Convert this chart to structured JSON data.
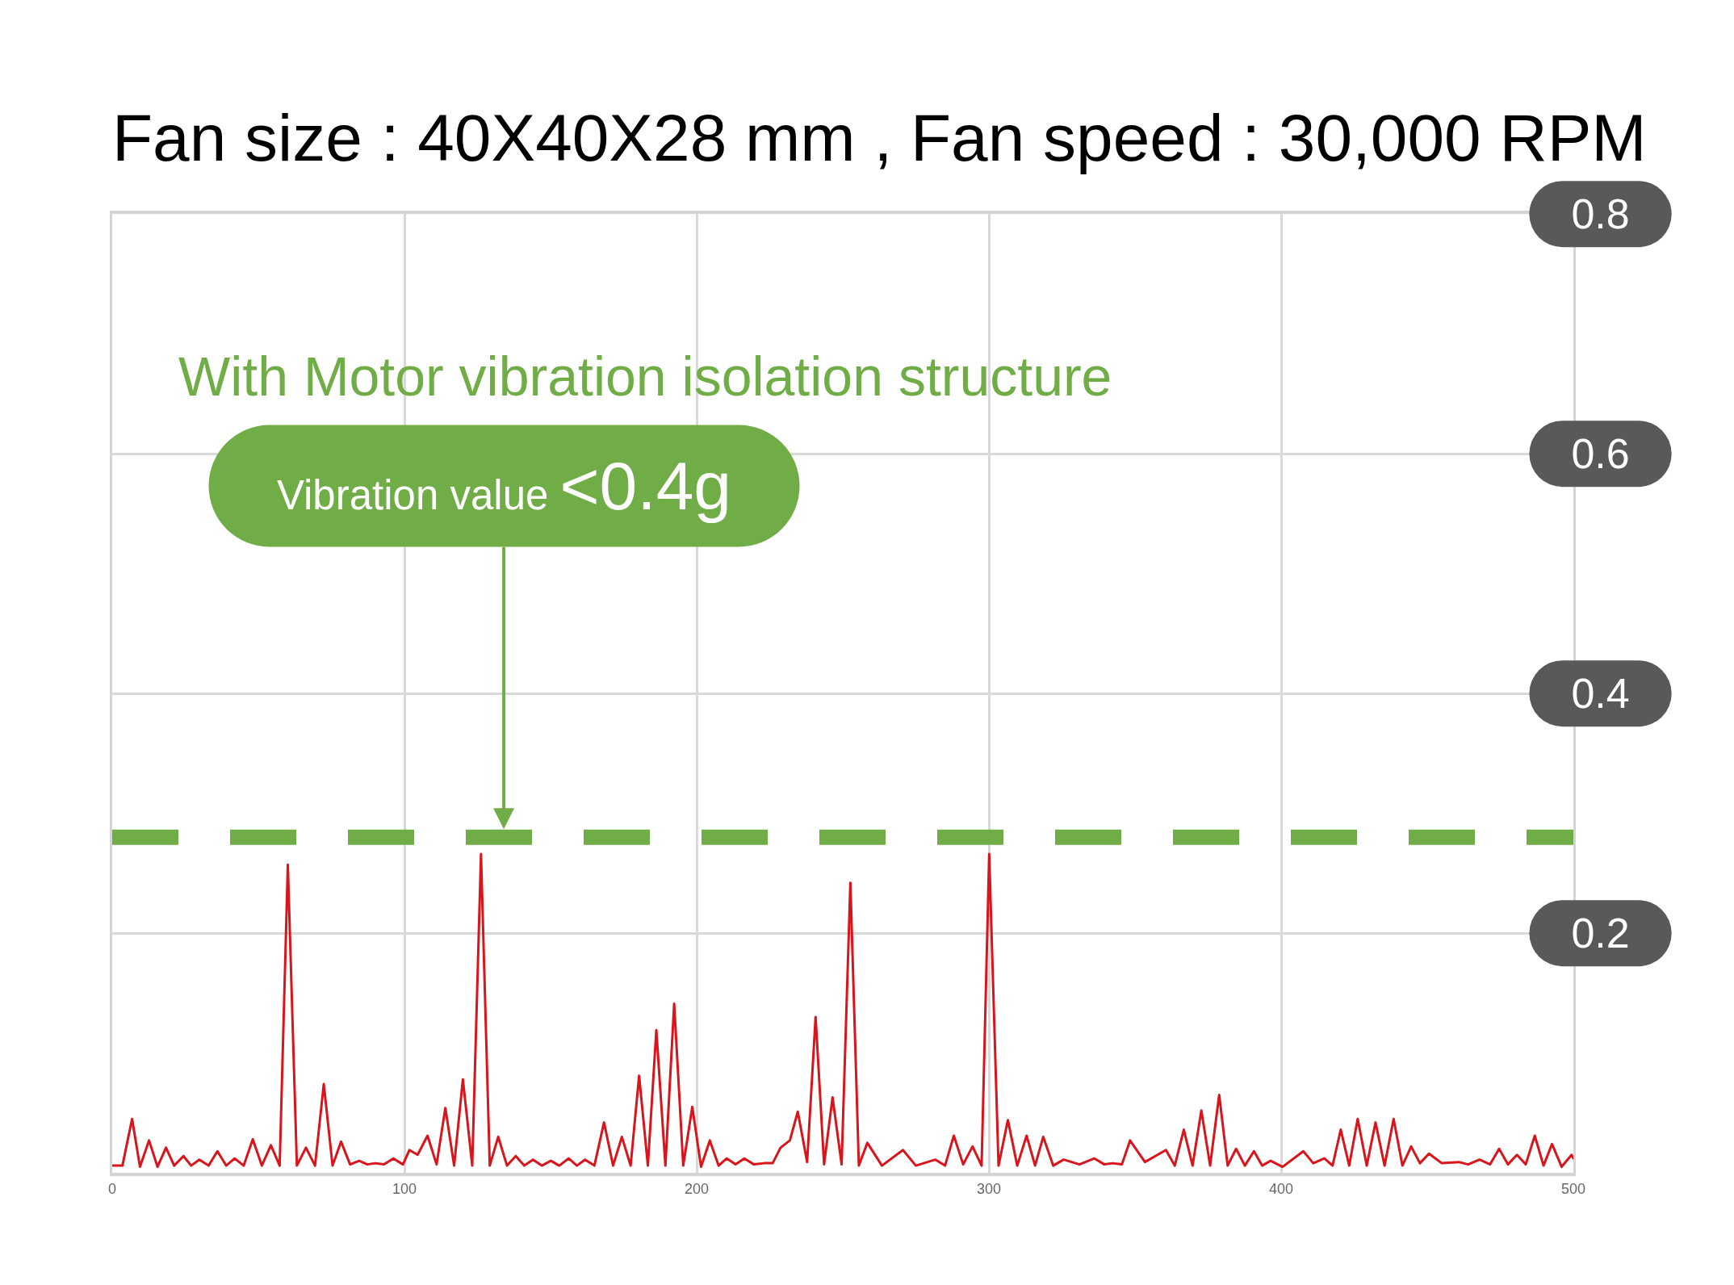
{
  "chart_data": {
    "type": "line",
    "title": "Fan size : 40X40X28 mm , Fan speed : 30,000 RPM",
    "annotations": [
      "With Motor vibration isolation structure",
      {
        "text": "Vibration value <0.4g",
        "x": 134,
        "y": 0.28
      }
    ],
    "x": [
      0,
      3.5,
      6.8,
      9.5,
      12.6,
      15.5,
      18.4,
      21.2,
      24.4,
      27,
      29.8,
      33,
      36,
      39,
      41.9,
      45,
      48.1,
      51.2,
      54.3,
      57.3,
      60.1,
      63.2,
      66.3,
      69.4,
      72.4,
      75.4,
      78.3,
      81.4,
      84.5,
      87.3,
      90,
      93,
      96.2,
      99.5,
      101.7,
      104.5,
      107.9,
      111,
      114,
      117,
      120,
      123.2,
      126.2,
      129.2,
      132.1,
      135.1,
      138.1,
      141,
      144,
      147,
      150.1,
      153,
      156.2,
      159,
      161.8,
      165,
      168.3,
      171.4,
      174.4,
      177.4,
      180.3,
      183.3,
      186.2,
      189.3,
      192.3,
      195.4,
      198.5,
      201.5,
      204.5,
      207.5,
      210.3,
      213.3,
      216.3,
      219.6,
      223,
      226,
      228.7,
      231.9,
      234.6,
      237.8,
      240.7,
      243.6,
      246.5,
      249.6,
      252.6,
      255.5,
      258.4,
      263.4,
      270.6,
      275,
      281.7,
      285,
      288,
      291.2,
      294.4,
      297.5,
      300.1,
      303.3,
      306.5,
      309.7,
      312.9,
      315.8,
      318.6,
      322,
      325.6,
      331,
      336.1,
      339.5,
      342.4,
      345.5,
      348.3,
      353.4,
      360.6,
      363.6,
      366.7,
      369.7,
      372.7,
      375.7,
      378.8,
      381.7,
      384.6,
      387.6,
      390.7,
      393.5,
      396.4,
      400.5,
      407.6,
      411,
      414.8,
      417.6,
      420.4,
      423.3,
      426.2,
      429.3,
      432.3,
      435.4,
      438.5,
      441.5,
      444.5,
      447.5,
      450.6,
      455,
      460.8,
      464,
      467.9,
      471.5,
      474.6,
      477.6,
      480.7,
      483.7,
      486.8,
      489.8,
      492.7,
      496,
      499.4,
      500
    ],
    "values": [
      0.006,
      0.006,
      0.045,
      0.005,
      0.027,
      0.005,
      0.021,
      0.006,
      0.014,
      0.006,
      0.011,
      0.006,
      0.018,
      0.006,
      0.012,
      0.006,
      0.028,
      0.006,
      0.023,
      0.006,
      0.257,
      0.006,
      0.021,
      0.006,
      0.074,
      0.006,
      0.026,
      0.007,
      0.01,
      0.007,
      0.008,
      0.007,
      0.012,
      0.007,
      0.019,
      0.015,
      0.031,
      0.007,
      0.054,
      0.006,
      0.078,
      0.006,
      0.266,
      0.006,
      0.03,
      0.006,
      0.014,
      0.006,
      0.011,
      0.006,
      0.01,
      0.006,
      0.012,
      0.006,
      0.011,
      0.006,
      0.042,
      0.006,
      0.03,
      0.006,
      0.081,
      0.006,
      0.119,
      0.006,
      0.141,
      0.006,
      0.055,
      0.005,
      0.027,
      0.006,
      0.012,
      0.007,
      0.012,
      0.007,
      0.008,
      0.008,
      0.021,
      0.027,
      0.051,
      0.009,
      0.13,
      0.007,
      0.063,
      0.007,
      0.242,
      0.006,
      0.025,
      0.006,
      0.019,
      0.006,
      0.011,
      0.006,
      0.031,
      0.007,
      0.022,
      0.006,
      0.266,
      0.006,
      0.044,
      0.006,
      0.031,
      0.006,
      0.03,
      0.006,
      0.011,
      0.007,
      0.012,
      0.007,
      0.008,
      0.007,
      0.027,
      0.009,
      0.019,
      0.006,
      0.036,
      0.006,
      0.052,
      0.006,
      0.065,
      0.006,
      0.02,
      0.006,
      0.018,
      0.006,
      0.01,
      0.005,
      0.018,
      0.008,
      0.012,
      0.006,
      0.036,
      0.006,
      0.045,
      0.006,
      0.042,
      0.006,
      0.045,
      0.006,
      0.022,
      0.008,
      0.016,
      0.008,
      0.009,
      0.007,
      0.011,
      0.007,
      0.02,
      0.007,
      0.015,
      0.007,
      0.031,
      0.006,
      0.024,
      0.005,
      0.015,
      0.012
    ],
    "color": "#d9141b",
    "xlim": [
      0,
      500
    ],
    "xticks": [
      0,
      100,
      200,
      300,
      400,
      500
    ],
    "ylim": [
      0,
      0.8
    ],
    "yticks": [
      0.2,
      0.4,
      0.6,
      0.8
    ],
    "grid": true,
    "ref_lines": [
      {
        "axis": "y",
        "value": 0.28,
        "color": "#70ad47",
        "line_style": "dashed"
      }
    ]
  }
}
